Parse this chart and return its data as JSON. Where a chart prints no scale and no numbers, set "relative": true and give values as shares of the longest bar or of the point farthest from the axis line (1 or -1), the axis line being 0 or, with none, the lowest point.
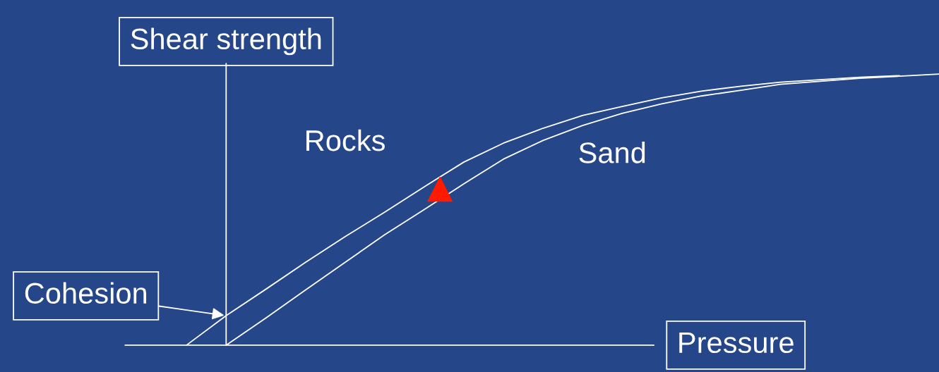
{
  "chart_data": {
    "type": "line",
    "relative": true,
    "xlabel": "Pressure",
    "ylabel": "Shear strength",
    "annotations": [
      "Cohesion"
    ],
    "categories": [
      null,
      null,
      null,
      null,
      null,
      null,
      null,
      null,
      null,
      null,
      null,
      null,
      null,
      null,
      null,
      null,
      null,
      null,
      null,
      null
    ],
    "series": [
      {
        "name": "Rocks",
        "color": "#ffffff",
        "values": [
          0,
          0.109,
          0.206,
          0.305,
          0.4,
          0.49,
          0.584,
          0.675,
          0.745,
          0.8,
          0.847,
          0.88,
          0.912,
          0.937,
          0.955,
          0.97,
          0.979,
          0.988,
          0.994,
          null
        ]
      },
      {
        "name": "Sand",
        "color": "#ffffff",
        "values": [
          null,
          0,
          0.1,
          0.203,
          0.305,
          0.407,
          0.5,
          0.595,
          0.686,
          0.755,
          0.81,
          0.855,
          0.89,
          0.919,
          0.94,
          0.962,
          0.973,
          0.984,
          0.992,
          1.0
        ]
      }
    ]
  }
}
